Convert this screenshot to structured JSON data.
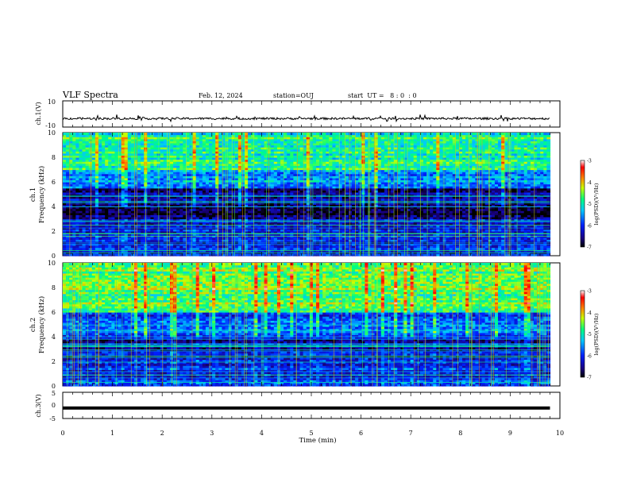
{
  "header": {
    "title": "VLF Spectra",
    "date": "Feb. 12, 2024",
    "station": "station=OUJ",
    "start": "start  UT =   8 : 0  : 0"
  },
  "chart_data": [
    {
      "type": "line",
      "panel": "ch1-waveform",
      "ylabel": "ch.1(V)",
      "ylim": [
        -10,
        10
      ],
      "yticks": [
        10,
        -10
      ],
      "xlim": [
        0,
        10
      ],
      "series": [
        {
          "values_approx": [
            -3.5,
            -3.0,
            -4.0
          ]
        }
      ]
    },
    {
      "type": "heatmap",
      "panel": "ch1-spectrogram",
      "ylabel": "ch.1\nFrequency (kHz)",
      "ylabel_line1": "ch.1",
      "ylabel_line2": "Frequency (kHz)",
      "ylim": [
        0,
        10
      ],
      "yticks": [
        0,
        2,
        4,
        6,
        8,
        10
      ],
      "xlim": [
        0,
        10
      ],
      "data_end_min": 9.8,
      "colorbar": {
        "label": "log(PSD)(V²/Hz)",
        "range": [
          -7,
          -3
        ],
        "ticks": [
          -7,
          -6,
          -5,
          -4,
          -3
        ]
      },
      "bands_kHz": [
        {
          "from": 7.0,
          "to": 10.0,
          "level": -4.9
        },
        {
          "from": 5.5,
          "to": 7.0,
          "level": -5.6
        },
        {
          "from": 4.0,
          "to": 5.5,
          "level": -6.5
        },
        {
          "from": 3.0,
          "to": 4.0,
          "level": -6.8
        },
        {
          "from": 0.0,
          "to": 3.0,
          "level": -6.2
        }
      ]
    },
    {
      "type": "heatmap",
      "panel": "ch2-spectrogram",
      "ylabel": "ch.2\nFrequency (kHz)",
      "ylabel_line1": "ch.2",
      "ylabel_line2": "Frequency (kHz)",
      "ylim": [
        0,
        10
      ],
      "yticks": [
        0,
        2,
        4,
        6,
        8,
        10
      ],
      "xlim": [
        0,
        10
      ],
      "data_end_min": 9.8,
      "colorbar": {
        "label": "log(PSD)(V²/Hz)",
        "range": [
          -7,
          -3
        ],
        "ticks": [
          -7,
          -6,
          -5,
          -4,
          -3
        ]
      },
      "bands_kHz": [
        {
          "from": 6.0,
          "to": 10.0,
          "level": -4.6
        },
        {
          "from": 4.0,
          "to": 6.0,
          "level": -5.8
        },
        {
          "from": 2.0,
          "to": 4.0,
          "level": -6.3
        },
        {
          "from": 0.0,
          "to": 2.0,
          "level": -6.0
        }
      ]
    },
    {
      "type": "line",
      "panel": "ch3-waveform",
      "ylabel": "ch.3(V)",
      "ylim": [
        -5,
        5
      ],
      "yticks": [
        5,
        0,
        -5
      ],
      "xlim": [
        0,
        10
      ],
      "series": [
        {
          "values_approx": [
            -1.0
          ]
        }
      ]
    }
  ],
  "xaxis": {
    "label": "Time  (min)",
    "ticks": [
      "0",
      "1",
      "2",
      "3",
      "4",
      "5",
      "6",
      "7",
      "8",
      "9",
      "10"
    ]
  }
}
